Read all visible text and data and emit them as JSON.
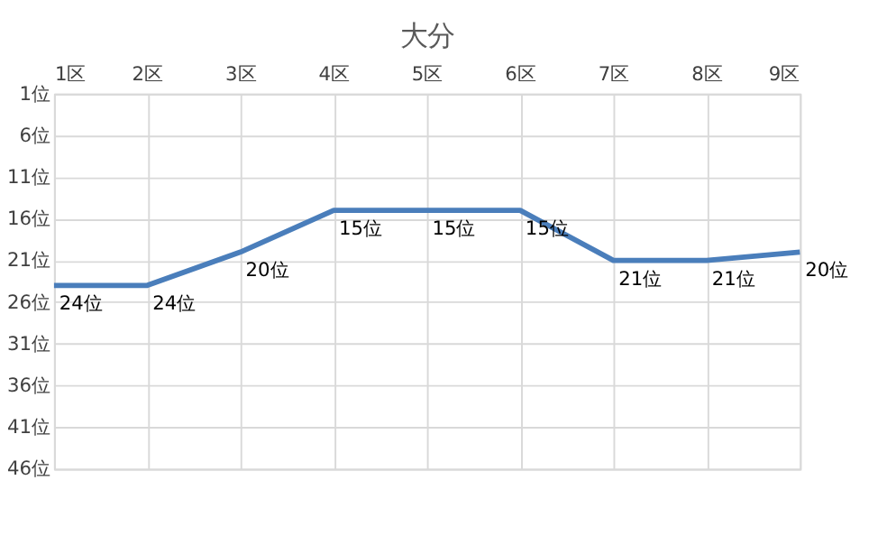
{
  "chart_data": {
    "type": "line",
    "title": "大分",
    "categories": [
      "1区",
      "2区",
      "3区",
      "4区",
      "5区",
      "6区",
      "7区",
      "8区",
      "9区"
    ],
    "series": [
      {
        "color": "#4a7ebb",
        "values": [
          24,
          24,
          20,
          15,
          15,
          15,
          21,
          21,
          20
        ],
        "value_labels": [
          "24位",
          "24位",
          "20位",
          "15位",
          "15位",
          "15位",
          "21位",
          "21位",
          "20位"
        ]
      }
    ],
    "ylim": [
      46,
      1
    ],
    "yticks": [
      {
        "value": 1,
        "label": "1位"
      },
      {
        "value": 6,
        "label": "6位"
      },
      {
        "value": 11,
        "label": "11位"
      },
      {
        "value": 16,
        "label": "16位"
      },
      {
        "value": 21,
        "label": "21位"
      },
      {
        "value": 26,
        "label": "26位"
      },
      {
        "value": 31,
        "label": "31位"
      },
      {
        "value": 36,
        "label": "36位"
      },
      {
        "value": 41,
        "label": "41位"
      },
      {
        "value": 46,
        "label": "46位"
      }
    ],
    "grid": true,
    "legend": false,
    "marker": "none",
    "line_style": "solid"
  }
}
